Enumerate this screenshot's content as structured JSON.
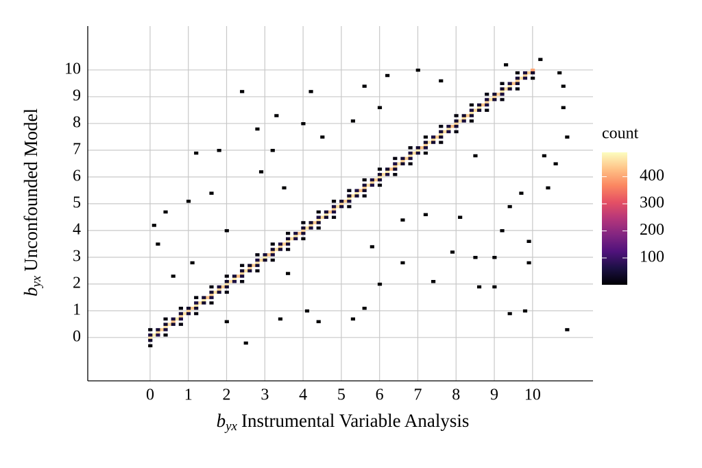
{
  "chart_data": {
    "type": "bin2d",
    "xlabel_symbol": "b",
    "xlabel_subscript": "yx",
    "xlabel": "Instrumental Variable Analysis",
    "ylabel_symbol": "b",
    "ylabel_subscript": "yx",
    "ylabel": "Unconfounded Model",
    "legend_title": "count",
    "xlim": [
      -1.63,
      11.58
    ],
    "xticks": [
      0,
      1,
      2,
      3,
      4,
      5,
      6,
      7,
      8,
      9,
      10
    ],
    "ylim": [
      -1.62,
      11.64
    ],
    "yticks": [
      0,
      1,
      2,
      3,
      4,
      5,
      6,
      7,
      8,
      9,
      10
    ],
    "clim": [
      1,
      490
    ],
    "cticks": [
      100,
      200,
      300,
      400
    ],
    "colormap": [
      "#000004",
      "#1c1044",
      "#4f127b",
      "#812581",
      "#b5367a",
      "#e55064",
      "#fb8761",
      "#fec287",
      "#fcfdbf"
    ],
    "grid": true,
    "binwidth": [
      0.1,
      0.1
    ],
    "cells": [
      [
        0,
        0,
        460
      ],
      [
        0.1,
        0.1,
        470
      ],
      [
        0.2,
        0.2,
        450
      ],
      [
        0.3,
        0.3,
        440
      ],
      [
        0.4,
        0.4,
        465
      ],
      [
        0.5,
        0.5,
        455
      ],
      [
        0.6,
        0.6,
        430
      ],
      [
        0.7,
        0.7,
        470
      ],
      [
        0.8,
        0.8,
        445
      ],
      [
        0.9,
        0.9,
        460
      ],
      [
        1,
        1,
        450
      ],
      [
        1.1,
        1.1,
        440
      ],
      [
        1.2,
        1.2,
        465
      ],
      [
        1.3,
        1.3,
        455
      ],
      [
        1.4,
        1.4,
        470
      ],
      [
        1.5,
        1.5,
        430
      ],
      [
        1.6,
        1.6,
        445
      ],
      [
        1.7,
        1.7,
        460
      ],
      [
        1.8,
        1.8,
        450
      ],
      [
        1.9,
        1.9,
        440
      ],
      [
        2,
        2,
        465
      ],
      [
        2.1,
        2.1,
        455
      ],
      [
        2.2,
        2.2,
        470
      ],
      [
        2.3,
        2.3,
        430
      ],
      [
        2.4,
        2.4,
        445
      ],
      [
        2.5,
        2.5,
        460
      ],
      [
        2.6,
        2.6,
        450
      ],
      [
        2.7,
        2.7,
        440
      ],
      [
        2.8,
        2.8,
        465
      ],
      [
        2.9,
        2.9,
        455
      ],
      [
        3,
        3,
        470
      ],
      [
        3.1,
        3.1,
        430
      ],
      [
        3.2,
        3.2,
        445
      ],
      [
        3.3,
        3.3,
        460
      ],
      [
        3.4,
        3.4,
        450
      ],
      [
        3.5,
        3.5,
        440
      ],
      [
        3.6,
        3.6,
        465
      ],
      [
        3.7,
        3.7,
        455
      ],
      [
        3.8,
        3.8,
        470
      ],
      [
        3.9,
        3.9,
        430
      ],
      [
        4,
        4,
        445
      ],
      [
        4.1,
        4.1,
        460
      ],
      [
        4.2,
        4.2,
        450
      ],
      [
        4.3,
        4.3,
        440
      ],
      [
        4.4,
        4.4,
        465
      ],
      [
        4.5,
        4.5,
        455
      ],
      [
        4.6,
        4.6,
        470
      ],
      [
        4.7,
        4.7,
        430
      ],
      [
        4.8,
        4.8,
        445
      ],
      [
        4.9,
        4.9,
        460
      ],
      [
        5,
        5,
        450
      ],
      [
        5.1,
        5.1,
        440
      ],
      [
        5.2,
        5.2,
        465
      ],
      [
        5.3,
        5.3,
        455
      ],
      [
        5.4,
        5.4,
        470
      ],
      [
        5.5,
        5.5,
        430
      ],
      [
        5.6,
        5.6,
        445
      ],
      [
        5.7,
        5.7,
        460
      ],
      [
        5.8,
        5.8,
        450
      ],
      [
        5.9,
        5.9,
        440
      ],
      [
        6,
        6,
        465
      ],
      [
        6.1,
        6.1,
        455
      ],
      [
        6.2,
        6.2,
        470
      ],
      [
        6.3,
        6.3,
        430
      ],
      [
        6.4,
        6.4,
        445
      ],
      [
        6.5,
        6.5,
        460
      ],
      [
        6.6,
        6.6,
        450
      ],
      [
        6.7,
        6.7,
        440
      ],
      [
        6.8,
        6.8,
        465
      ],
      [
        6.9,
        6.9,
        455
      ],
      [
        7,
        7,
        470
      ],
      [
        7.1,
        7.1,
        430
      ],
      [
        7.2,
        7.2,
        445
      ],
      [
        7.3,
        7.3,
        460
      ],
      [
        7.4,
        7.4,
        450
      ],
      [
        7.5,
        7.5,
        440
      ],
      [
        7.6,
        7.6,
        465
      ],
      [
        7.7,
        7.7,
        455
      ],
      [
        7.8,
        7.8,
        470
      ],
      [
        7.9,
        7.9,
        430
      ],
      [
        8,
        8,
        445
      ],
      [
        8.1,
        8.1,
        460
      ],
      [
        8.2,
        8.2,
        450
      ],
      [
        8.3,
        8.3,
        440
      ],
      [
        8.4,
        8.4,
        465
      ],
      [
        8.5,
        8.5,
        455
      ],
      [
        8.6,
        8.6,
        470
      ],
      [
        8.7,
        8.7,
        430
      ],
      [
        8.8,
        8.8,
        445
      ],
      [
        8.9,
        8.9,
        460
      ],
      [
        9,
        9,
        450
      ],
      [
        9.1,
        9.1,
        440
      ],
      [
        9.2,
        9.2,
        465
      ],
      [
        9.3,
        9.3,
        455
      ],
      [
        9.4,
        9.4,
        470
      ],
      [
        9.5,
        9.5,
        430
      ],
      [
        9.6,
        9.6,
        445
      ],
      [
        9.7,
        9.7,
        460
      ],
      [
        9.8,
        9.8,
        450
      ],
      [
        9.9,
        9.9,
        440
      ],
      [
        10,
        10,
        400
      ],
      [
        0,
        0.1,
        60
      ],
      [
        0,
        -0.1,
        40
      ],
      [
        0.2,
        0.3,
        50
      ],
      [
        0.2,
        0.1,
        70
      ],
      [
        0.4,
        0.5,
        40
      ],
      [
        0.4,
        0.3,
        60
      ],
      [
        0.6,
        0.7,
        55
      ],
      [
        0.6,
        0.5,
        45
      ],
      [
        0.8,
        0.9,
        50
      ],
      [
        0.8,
        0.7,
        65
      ],
      [
        1,
        1.1,
        40
      ],
      [
        1,
        0.9,
        55
      ],
      [
        1.2,
        1.3,
        60
      ],
      [
        1.2,
        1.1,
        45
      ],
      [
        1.4,
        1.5,
        50
      ],
      [
        1.4,
        1.3,
        40
      ],
      [
        1.6,
        1.7,
        45
      ],
      [
        1.6,
        1.5,
        60
      ],
      [
        1.8,
        1.9,
        55
      ],
      [
        1.8,
        1.7,
        50
      ],
      [
        2,
        2.1,
        40
      ],
      [
        2,
        1.9,
        45
      ],
      [
        2.2,
        2.3,
        50
      ],
      [
        2.2,
        2.1,
        60
      ],
      [
        2.4,
        2.5,
        45
      ],
      [
        2.4,
        2.3,
        55
      ],
      [
        2.6,
        2.7,
        40
      ],
      [
        2.6,
        2.5,
        50
      ],
      [
        2.8,
        2.9,
        60
      ],
      [
        2.8,
        2.7,
        45
      ],
      [
        3,
        3.1,
        50
      ],
      [
        3,
        2.9,
        40
      ],
      [
        3.2,
        3.3,
        45
      ],
      [
        3.2,
        3.1,
        55
      ],
      [
        3.4,
        3.5,
        60
      ],
      [
        3.4,
        3.3,
        50
      ],
      [
        3.6,
        3.7,
        40
      ],
      [
        3.6,
        3.5,
        45
      ],
      [
        3.8,
        3.9,
        55
      ],
      [
        3.8,
        3.7,
        60
      ],
      [
        4,
        4.1,
        45
      ],
      [
        4,
        3.9,
        50
      ],
      [
        4.2,
        4.3,
        40
      ],
      [
        4.2,
        4.1,
        55
      ],
      [
        4.4,
        4.5,
        60
      ],
      [
        4.4,
        4.3,
        45
      ],
      [
        4.6,
        4.7,
        50
      ],
      [
        4.6,
        4.5,
        40
      ],
      [
        4.8,
        4.9,
        55
      ],
      [
        4.8,
        4.7,
        60
      ],
      [
        5,
        5.1,
        45
      ],
      [
        5,
        4.9,
        50
      ],
      [
        5.2,
        5.3,
        40
      ],
      [
        5.2,
        5.1,
        55
      ],
      [
        5.4,
        5.5,
        60
      ],
      [
        5.4,
        5.3,
        45
      ],
      [
        5.6,
        5.7,
        50
      ],
      [
        5.6,
        5.5,
        40
      ],
      [
        5.8,
        5.9,
        55
      ],
      [
        5.8,
        5.7,
        60
      ],
      [
        6,
        6.1,
        45
      ],
      [
        6,
        5.9,
        50
      ],
      [
        6.2,
        6.3,
        40
      ],
      [
        6.2,
        6.1,
        55
      ],
      [
        6.4,
        6.5,
        60
      ],
      [
        6.4,
        6.3,
        45
      ],
      [
        6.6,
        6.7,
        50
      ],
      [
        6.6,
        6.5,
        40
      ],
      [
        6.8,
        6.9,
        55
      ],
      [
        6.8,
        6.7,
        60
      ],
      [
        7,
        7.1,
        45
      ],
      [
        7,
        6.9,
        50
      ],
      [
        7.2,
        7.3,
        40
      ],
      [
        7.2,
        7.1,
        55
      ],
      [
        7.4,
        7.5,
        60
      ],
      [
        7.4,
        7.3,
        45
      ],
      [
        7.6,
        7.7,
        50
      ],
      [
        7.6,
        7.5,
        40
      ],
      [
        7.8,
        7.9,
        55
      ],
      [
        7.8,
        7.7,
        60
      ],
      [
        8,
        8.1,
        45
      ],
      [
        8,
        7.9,
        50
      ],
      [
        8.2,
        8.3,
        40
      ],
      [
        8.2,
        8.1,
        55
      ],
      [
        8.4,
        8.5,
        60
      ],
      [
        8.4,
        8.3,
        45
      ],
      [
        8.6,
        8.7,
        50
      ],
      [
        8.6,
        8.5,
        40
      ],
      [
        8.8,
        8.9,
        55
      ],
      [
        8.8,
        8.7,
        60
      ],
      [
        9,
        9.1,
        45
      ],
      [
        9,
        8.9,
        50
      ],
      [
        9.2,
        9.3,
        40
      ],
      [
        9.2,
        9.1,
        55
      ],
      [
        9.4,
        9.5,
        60
      ],
      [
        9.4,
        9.3,
        45
      ],
      [
        9.6,
        9.7,
        50
      ],
      [
        9.6,
        9.5,
        40
      ],
      [
        9.8,
        9.9,
        55
      ],
      [
        9.8,
        9.7,
        60
      ],
      [
        10,
        9.9,
        40
      ],
      [
        0,
        0.3,
        10
      ],
      [
        0,
        -0.3,
        5
      ],
      [
        0.4,
        0.7,
        12
      ],
      [
        0.4,
        0.1,
        8
      ],
      [
        0.8,
        1.1,
        10
      ],
      [
        0.8,
        0.5,
        12
      ],
      [
        1.2,
        1.5,
        8
      ],
      [
        1.2,
        0.9,
        10
      ],
      [
        1.6,
        1.9,
        12
      ],
      [
        1.6,
        1.3,
        9
      ],
      [
        2,
        2.3,
        10
      ],
      [
        2,
        1.7,
        12
      ],
      [
        2.4,
        2.7,
        8
      ],
      [
        2.4,
        2.1,
        10
      ],
      [
        2.8,
        3.1,
        12
      ],
      [
        2.8,
        2.5,
        9
      ],
      [
        3.2,
        3.5,
        10
      ],
      [
        3.2,
        2.9,
        12
      ],
      [
        3.6,
        3.9,
        8
      ],
      [
        3.6,
        3.3,
        10
      ],
      [
        4,
        4.3,
        12
      ],
      [
        4,
        3.7,
        9
      ],
      [
        4.4,
        4.7,
        10
      ],
      [
        4.4,
        4.1,
        12
      ],
      [
        4.8,
        5.1,
        8
      ],
      [
        4.8,
        4.5,
        10
      ],
      [
        5.2,
        5.5,
        12
      ],
      [
        5.2,
        4.9,
        9
      ],
      [
        5.6,
        5.9,
        10
      ],
      [
        5.6,
        5.3,
        12
      ],
      [
        6,
        6.3,
        8
      ],
      [
        6,
        5.7,
        10
      ],
      [
        6.4,
        6.7,
        12
      ],
      [
        6.4,
        6.1,
        9
      ],
      [
        6.8,
        7.1,
        10
      ],
      [
        6.8,
        6.5,
        12
      ],
      [
        7.2,
        7.5,
        8
      ],
      [
        7.2,
        6.9,
        10
      ],
      [
        7.6,
        7.9,
        12
      ],
      [
        7.6,
        7.3,
        9
      ],
      [
        8,
        8.3,
        10
      ],
      [
        8,
        7.7,
        12
      ],
      [
        8.4,
        8.7,
        8
      ],
      [
        8.4,
        8.1,
        10
      ],
      [
        8.8,
        9.1,
        12
      ],
      [
        8.8,
        8.5,
        9
      ],
      [
        9.2,
        9.5,
        10
      ],
      [
        9.2,
        8.9,
        12
      ],
      [
        9.6,
        9.9,
        8
      ],
      [
        9.6,
        9.3,
        10
      ],
      [
        10,
        9.7,
        8
      ],
      [
        2.4,
        9.2,
        1
      ],
      [
        4.2,
        9.2,
        1
      ],
      [
        3.3,
        8.3,
        1
      ],
      [
        2.8,
        7.8,
        1
      ],
      [
        1.8,
        7,
        1
      ],
      [
        1.2,
        6.9,
        1
      ],
      [
        1,
        5.1,
        1
      ],
      [
        0.4,
        4.7,
        1
      ],
      [
        0.1,
        4.2,
        1
      ],
      [
        0.2,
        3.5,
        1
      ],
      [
        1.6,
        5.4,
        1
      ],
      [
        3.2,
        7,
        1
      ],
      [
        4,
        8,
        1
      ],
      [
        5.6,
        9.4,
        1
      ],
      [
        6.2,
        9.8,
        1
      ],
      [
        7,
        10,
        1
      ],
      [
        7.6,
        9.6,
        1
      ],
      [
        9.3,
        10.2,
        1
      ],
      [
        10.2,
        10.4,
        1
      ],
      [
        10.8,
        9.4,
        1
      ],
      [
        10.8,
        8.6,
        1
      ],
      [
        10.9,
        7.5,
        1
      ],
      [
        10.3,
        6.8,
        1
      ],
      [
        10.6,
        6.5,
        1
      ],
      [
        10.4,
        5.6,
        1
      ],
      [
        9.7,
        5.4,
        1
      ],
      [
        9.4,
        4.9,
        1
      ],
      [
        9.2,
        4,
        1
      ],
      [
        8.5,
        3,
        1
      ],
      [
        9,
        3,
        1
      ],
      [
        9.9,
        2.8,
        1
      ],
      [
        8.6,
        1.9,
        1
      ],
      [
        9,
        1.9,
        1
      ],
      [
        9.4,
        0.9,
        1
      ],
      [
        9.8,
        1,
        1
      ],
      [
        10.9,
        0.3,
        1
      ],
      [
        6.6,
        2.8,
        1
      ],
      [
        6,
        2,
        1
      ],
      [
        5.6,
        1.1,
        1
      ],
      [
        5.3,
        0.7,
        1
      ],
      [
        4.4,
        0.6,
        1
      ],
      [
        4.1,
        1,
        1
      ],
      [
        3.4,
        0.7,
        1
      ],
      [
        2.5,
        -0.2,
        1
      ],
      [
        2,
        0.6,
        1
      ],
      [
        7.4,
        2.1,
        1
      ],
      [
        7.9,
        3.2,
        1
      ],
      [
        8.1,
        4.5,
        1
      ],
      [
        3.5,
        5.6,
        1
      ],
      [
        2.9,
        6.2,
        1
      ],
      [
        4.5,
        7.5,
        1
      ],
      [
        5.3,
        8.1,
        1
      ],
      [
        6,
        8.6,
        1
      ],
      [
        9.9,
        3.6,
        1
      ],
      [
        7.2,
        4.6,
        1
      ],
      [
        10.7,
        9.9,
        1
      ],
      [
        8.5,
        6.8,
        1
      ],
      [
        6.6,
        4.4,
        1
      ],
      [
        1.1,
        2.8,
        1
      ],
      [
        0.6,
        2.3,
        1
      ],
      [
        2,
        4,
        1
      ],
      [
        3.6,
        2.4,
        1
      ],
      [
        5.8,
        3.4,
        1
      ]
    ]
  }
}
